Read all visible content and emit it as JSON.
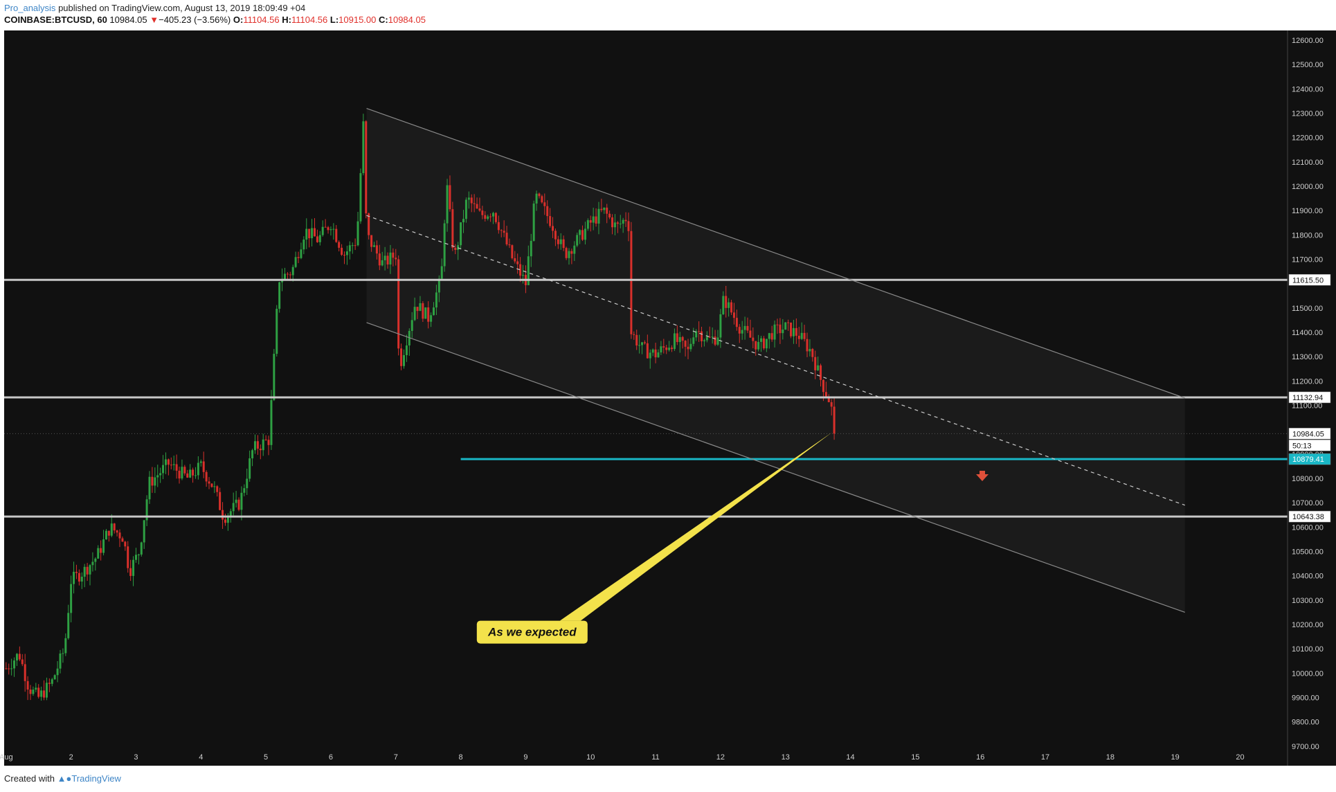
{
  "header": {
    "author": "Pro_analysis",
    "published": "published on TradingView.com, August 13, 2019 18:09:49 +04",
    "symbol": "COINBASE:BTCUSD, 60",
    "last": "10984.05",
    "change": "−405.23 (−3.56%)",
    "o_label": "O:",
    "o": "11104.56",
    "h_label": "H:",
    "h": "11104.56",
    "l_label": "L:",
    "l": "10915.00",
    "c_label": "C:",
    "c": "10984.05"
  },
  "footer": {
    "created": "Created with",
    "brand": "TradingView"
  },
  "colors": {
    "background": "#111111",
    "up": "#2ea043",
    "down": "#d9302b",
    "level": "#c8c8c8",
    "target": "#19b7c6",
    "callout": "#f3e24b"
  },
  "chart_data": {
    "type": "candlestick",
    "title": "",
    "ylim": [
      9620,
      12640
    ],
    "y_ticks": [
      9700,
      9800,
      9900,
      10000,
      10100,
      10200,
      10300,
      10400,
      10500,
      10600,
      10700,
      10800,
      10900,
      11100,
      11200,
      11300,
      11400,
      11500,
      11700,
      11800,
      11900,
      12000,
      12100,
      12200,
      12300,
      12400,
      12500,
      12600
    ],
    "y_tick_labels": [
      "9700.00",
      "9800.00",
      "9900.00",
      "10000.00",
      "10100.00",
      "10200.00",
      "10300.00",
      "10400.00",
      "10500.00",
      "10600.00",
      "10700.00",
      "10800.00",
      "10900.00",
      "11100.00",
      "11200.00",
      "11300.00",
      "11400.00",
      "11500.00",
      "11700.00",
      "11800.00",
      "11900.00",
      "12000.00",
      "12100.00",
      "12200.00",
      "12300.00",
      "12400.00",
      "12500.00",
      "12600.00"
    ],
    "x_ticks": [
      1,
      2,
      3,
      4,
      5,
      6,
      7,
      8,
      9,
      10,
      11,
      12,
      13,
      14,
      15,
      16,
      17,
      18,
      19,
      20
    ],
    "x_tick_labels": [
      "Aug",
      "2",
      "3",
      "4",
      "5",
      "6",
      "7",
      "8",
      "9",
      "10",
      "11",
      "12",
      "13",
      "14",
      "15",
      "16",
      "17",
      "18",
      "19",
      "20"
    ],
    "x_range": [
      0.97,
      20.73
    ],
    "price_path": [
      [
        1.0,
        10020
      ],
      [
        1.2,
        10080
      ],
      [
        1.35,
        9940
      ],
      [
        1.5,
        9900
      ],
      [
        1.7,
        9960
      ],
      [
        1.9,
        10100
      ],
      [
        2.0,
        10380
      ],
      [
        2.2,
        10420
      ],
      [
        2.4,
        10480
      ],
      [
        2.6,
        10600
      ],
      [
        2.8,
        10560
      ],
      [
        2.9,
        10420
      ],
      [
        3.05,
        10500
      ],
      [
        3.2,
        10780
      ],
      [
        3.5,
        10860
      ],
      [
        3.8,
        10800
      ],
      [
        4.0,
        10850
      ],
      [
        4.2,
        10760
      ],
      [
        4.35,
        10640
      ],
      [
        4.6,
        10700
      ],
      [
        4.8,
        10920
      ],
      [
        5.05,
        10960
      ],
      [
        5.2,
        11620
      ],
      [
        5.4,
        11650
      ],
      [
        5.6,
        11820
      ],
      [
        5.8,
        11780
      ],
      [
        6.0,
        11850
      ],
      [
        6.2,
        11720
      ],
      [
        6.4,
        11780
      ],
      [
        6.5,
        12250
      ],
      [
        6.55,
        11800
      ],
      [
        6.8,
        11680
      ],
      [
        7.0,
        11720
      ],
      [
        7.05,
        11250
      ],
      [
        7.3,
        11520
      ],
      [
        7.5,
        11460
      ],
      [
        7.7,
        11620
      ],
      [
        7.78,
        12020
      ],
      [
        7.9,
        11700
      ],
      [
        8.1,
        11950
      ],
      [
        8.3,
        11880
      ],
      [
        8.5,
        11900
      ],
      [
        8.8,
        11700
      ],
      [
        9.0,
        11600
      ],
      [
        9.15,
        11960
      ],
      [
        9.4,
        11850
      ],
      [
        9.6,
        11720
      ],
      [
        9.8,
        11780
      ],
      [
        10.0,
        11850
      ],
      [
        10.2,
        11900
      ],
      [
        10.4,
        11830
      ],
      [
        10.58,
        11880
      ],
      [
        10.62,
        11400
      ],
      [
        10.8,
        11330
      ],
      [
        11.0,
        11310
      ],
      [
        11.3,
        11370
      ],
      [
        11.5,
        11320
      ],
      [
        11.6,
        11420
      ],
      [
        11.8,
        11370
      ],
      [
        11.95,
        11380
      ],
      [
        12.05,
        11540
      ],
      [
        12.3,
        11420
      ],
      [
        12.6,
        11340
      ],
      [
        12.8,
        11400
      ],
      [
        13.0,
        11420
      ],
      [
        13.2,
        11390
      ],
      [
        13.4,
        11320
      ],
      [
        13.55,
        11200
      ],
      [
        13.7,
        11104
      ],
      [
        13.75,
        10984
      ]
    ],
    "levels": [
      {
        "price": 11615.5,
        "label": "11615.50"
      },
      {
        "price": 11132.94,
        "label": "11132.94"
      },
      {
        "price": 10643.38,
        "label": "10643.38"
      }
    ],
    "target_level": {
      "price": 10879.41,
      "label": "10879.41",
      "x_start": 8.0
    },
    "last_price": {
      "price": 10984.05,
      "label": "10984.05",
      "countdown": "50:13"
    },
    "channel": {
      "upper": [
        [
          6.55,
          12320
        ],
        [
          19.15,
          11130
        ]
      ],
      "lower": [
        [
          6.55,
          11440
        ],
        [
          19.15,
          10250
        ]
      ],
      "mid": [
        [
          6.55,
          11880
        ],
        [
          19.15,
          10690
        ]
      ]
    },
    "annotation": {
      "text": "As we expected",
      "anchor": [
        13.72,
        10990
      ],
      "box_center": [
        9.1,
        10170
      ]
    },
    "arrow_marker": {
      "x": 16.03,
      "price": 10800
    }
  }
}
